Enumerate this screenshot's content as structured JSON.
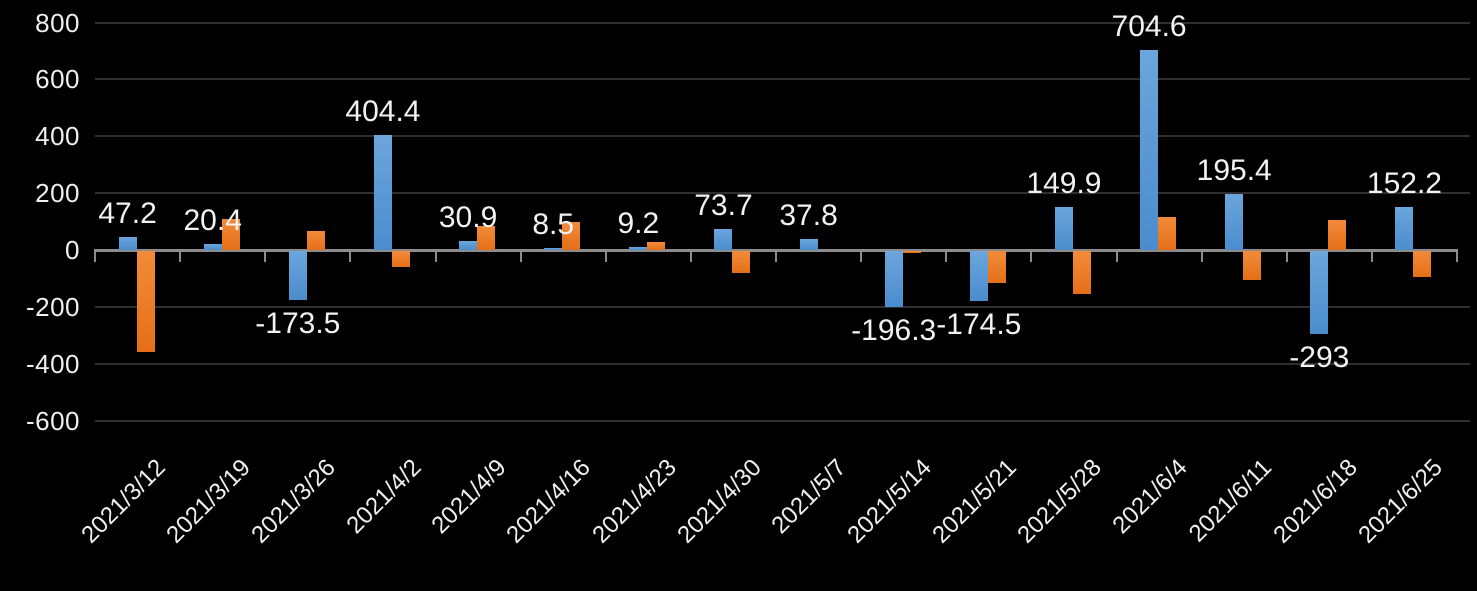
{
  "chart_data": {
    "type": "bar",
    "title": "",
    "xlabel": "",
    "ylabel": "",
    "categories": [
      "2021/3/12",
      "2021/3/19",
      "2021/3/26",
      "2021/4/2",
      "2021/4/9",
      "2021/4/16",
      "2021/4/23",
      "2021/4/30",
      "2021/5/7",
      "2021/5/14",
      "2021/5/21",
      "2021/5/28",
      "2021/6/4",
      "2021/6/11",
      "2021/6/18",
      "2021/6/25"
    ],
    "series": [
      {
        "name": "blue-series",
        "color": "#5B9BD5",
        "values": [
          47.2,
          20.4,
          -173.5,
          404.4,
          30.9,
          8.5,
          9.2,
          73.7,
          37.8,
          -196.3,
          -174.5,
          149.9,
          704.6,
          195.4,
          -293,
          152.2
        ],
        "data_labels": [
          "47.2",
          "20.4",
          "-173.5",
          "404.4",
          "30.9",
          "8.5",
          "9.2",
          "73.7",
          "37.8",
          "-196.3",
          "-174.5",
          "149.9",
          "704.6",
          "195.4",
          "-293",
          "152.2"
        ]
      },
      {
        "name": "orange-series",
        "color": "#ED7D31",
        "values": [
          -355,
          110,
          67,
          -58,
          85,
          98,
          27,
          -77,
          0,
          -7,
          -113,
          -150,
          115,
          -103,
          105,
          -90
        ],
        "data_labels": []
      }
    ],
    "ylim": [
      -600,
      800
    ],
    "yticks": [
      800,
      600,
      400,
      200,
      0,
      -200,
      -400,
      -600
    ],
    "grid": true,
    "legend": false,
    "background_color": "#000000",
    "axis_color": "#8c8c8c",
    "gridline_color": "#2f2f2f",
    "text_color": "#f2f2f2"
  }
}
